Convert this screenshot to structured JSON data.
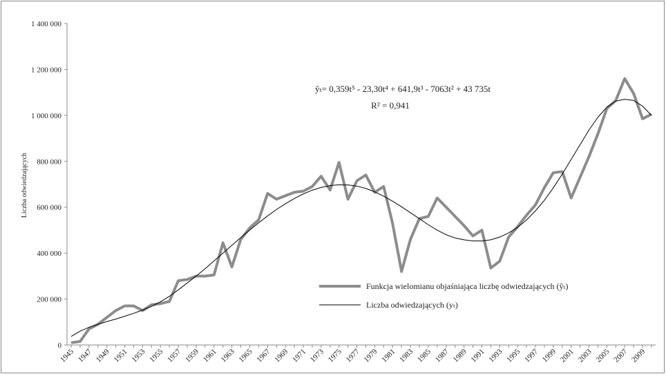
{
  "chart_data": {
    "type": "line",
    "y_label": "Liczba odwiedzających",
    "annotations": [
      "ŷₜ= 0,359t⁵ - 23,30t⁴ + 641,9t³ - 7063t² + 43 735t",
      "R² = 0,941"
    ],
    "categories": [
      "1945",
      null,
      "1947",
      null,
      "1949",
      null,
      "1951",
      null,
      "1953",
      null,
      "1955",
      null,
      "1957",
      null,
      "1959",
      null,
      "1961",
      null,
      "1963",
      null,
      "1965",
      null,
      "1967",
      null,
      "1969",
      null,
      "1971",
      null,
      "1973",
      null,
      "1975",
      null,
      "1977",
      null,
      "1979",
      null,
      "1981",
      null,
      "1983",
      null,
      "1985",
      null,
      "1987",
      null,
      "1989",
      null,
      "1991",
      null,
      "1993",
      null,
      "1995",
      null,
      "1997",
      null,
      "1999",
      null,
      "2001",
      null,
      "2003",
      null,
      "2005",
      null,
      "2007",
      null,
      "2009",
      null
    ],
    "series": [
      {
        "name": "Funkcja wielomianu objaśniająca liczbę odwiedzających (ŷₜ)",
        "color": "#8c8c8c",
        "width": 4,
        "values": [
          10000,
          15000,
          70000,
          90000,
          120000,
          150000,
          170000,
          170000,
          150000,
          175000,
          180000,
          190000,
          280000,
          285000,
          300000,
          300000,
          305000,
          445000,
          340000,
          460000,
          510000,
          545000,
          660000,
          635000,
          650000,
          665000,
          670000,
          690000,
          735000,
          675000,
          795000,
          635000,
          715000,
          740000,
          665000,
          690000,
          530000,
          320000,
          460000,
          550000,
          560000,
          640000,
          600000,
          560000,
          520000,
          475000,
          500000,
          335000,
          365000,
          470000,
          515000,
          565000,
          610000,
          685000,
          750000,
          755000,
          640000,
          730000,
          820000,
          920000,
          1030000,
          1065000,
          1160000,
          1095000,
          985000,
          1005000
        ]
      },
      {
        "name": "Liczba odwiedzających (yₜ)",
        "color": "#000000",
        "width": 1,
        "values": [
          37000,
          60000,
          77000,
          90000,
          102000,
          113000,
          125000,
          138000,
          152000,
          168000,
          188000,
          212000,
          240000,
          270000,
          300000,
          332000,
          366000,
          400000,
          434000,
          468000,
          500000,
          532000,
          562000,
          590000,
          615000,
          638000,
          658000,
          674000,
          686000,
          694000,
          698000,
          697000,
          692000,
          682000,
          667000,
          648000,
          626000,
          602000,
          576000,
          550000,
          524000,
          500000,
          480000,
          466000,
          458000,
          453000,
          453000,
          458000,
          470000,
          488000,
          512000,
          544000,
          584000,
          630000,
          684000,
          744000,
          808000,
          872000,
          936000,
          992000,
          1036000,
          1062000,
          1070000,
          1065000,
          1040000,
          1000000
        ]
      }
    ],
    "ylim": [
      0,
      1400000
    ],
    "yticks": [
      0,
      {
        "value": 200000,
        "label": "200 000"
      },
      {
        "value": 400000,
        "label": "400 000"
      },
      {
        "value": 600000,
        "label": "600 000"
      },
      {
        "value": 800000,
        "label": "800 000"
      },
      {
        "value": 1000000,
        "label": "1 000 000"
      },
      {
        "value": 1200000,
        "label": "1 200 000"
      },
      {
        "value": 1400000,
        "label": "1 400 000"
      }
    ]
  }
}
